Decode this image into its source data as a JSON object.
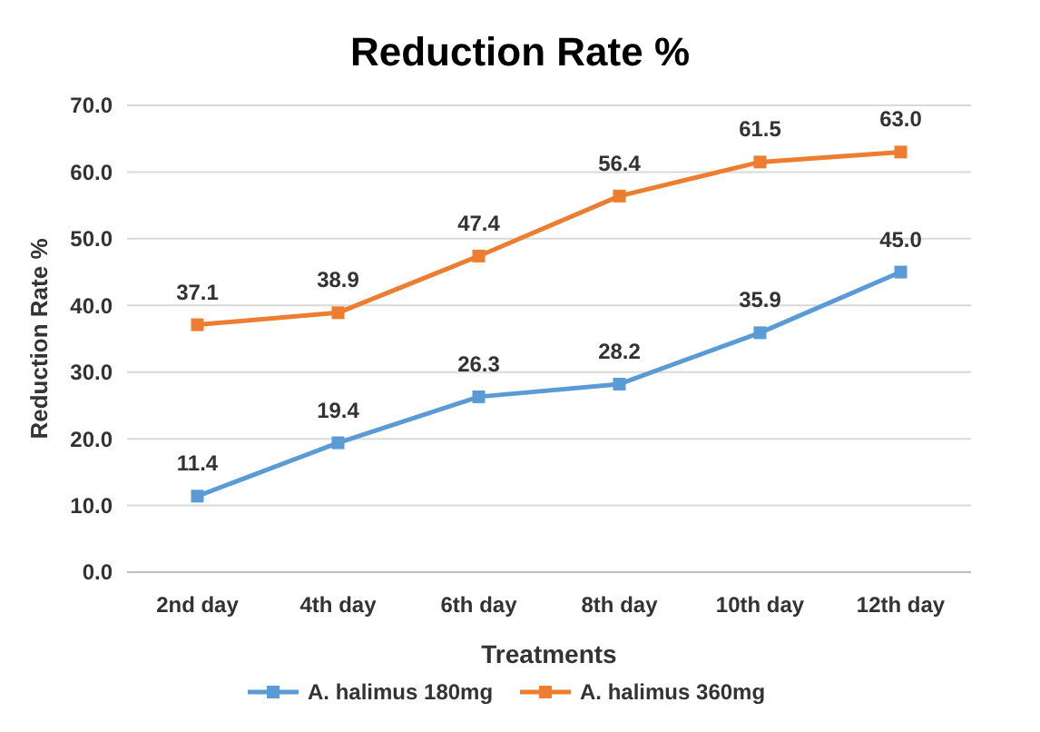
{
  "chart_data": {
    "type": "line",
    "title": "Reduction Rate %",
    "xlabel": "Treatments",
    "ylabel": "Reduction Rate %",
    "categories": [
      "2nd day",
      "4th day",
      "6th day",
      "8th day",
      "10th day",
      "12th day"
    ],
    "series": [
      {
        "name": "A. halimus 180mg",
        "color": "#5b9bd5",
        "values": [
          11.4,
          19.4,
          26.3,
          28.2,
          35.9,
          45.0
        ],
        "value_labels": [
          "11.4",
          "19.4",
          "26.3",
          "28.2",
          "35.9",
          "45.0"
        ]
      },
      {
        "name": "A. halimus 360mg",
        "color": "#ed7d31",
        "values": [
          37.1,
          38.9,
          47.4,
          56.4,
          61.5,
          63.0
        ],
        "value_labels": [
          "37.1",
          "38.9",
          "47.4",
          "56.4",
          "61.5",
          "63.0"
        ]
      }
    ],
    "ylim": [
      0,
      70
    ],
    "yticks": [
      {
        "value": 0,
        "label": "0.0"
      },
      {
        "value": 10,
        "label": "10.0"
      },
      {
        "value": 20,
        "label": "20.0"
      },
      {
        "value": 30,
        "label": "30.0"
      },
      {
        "value": 40,
        "label": "40.0"
      },
      {
        "value": 50,
        "label": "50.0"
      },
      {
        "value": 60,
        "label": "60.0"
      },
      {
        "value": 70,
        "label": "70.0"
      }
    ],
    "grid": "y",
    "legend": "bottom",
    "marker": "square",
    "line_style": "solid"
  }
}
